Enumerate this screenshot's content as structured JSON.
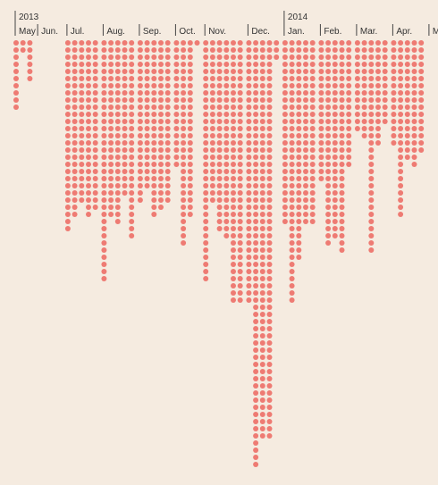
{
  "colors": {
    "background": "#f5ebe0",
    "dot": "#ee7b73",
    "text": "#333333",
    "tick": "#444444"
  },
  "chart_data": {
    "type": "dot-column",
    "years": [
      {
        "label": "2013",
        "month_index": 0
      },
      {
        "label": "2014",
        "month_index": 8
      }
    ],
    "months": [
      {
        "label": "May",
        "columns": [
          10,
          2,
          6
        ]
      },
      {
        "label": "Jun.",
        "columns": []
      },
      {
        "label": "Jul.",
        "columns": [
          27,
          25,
          23,
          25,
          24
        ]
      },
      {
        "label": "Aug.",
        "columns": [
          34,
          25,
          26,
          22,
          28
        ]
      },
      {
        "label": "Sep.",
        "columns": [
          23,
          21,
          25,
          24,
          23
        ]
      },
      {
        "label": "Oct.",
        "columns": [
          18,
          29,
          25,
          1
        ]
      },
      {
        "label": "Nov.",
        "columns": [
          34,
          23,
          27,
          28,
          37,
          37
        ]
      },
      {
        "label": "Dec.",
        "columns": [
          37,
          60,
          56,
          56,
          3
        ]
      },
      {
        "label": "Jan.",
        "columns": [
          26,
          37,
          31,
          26,
          26
        ]
      },
      {
        "label": "Feb.",
        "columns": [
          20,
          29,
          28,
          30,
          18
        ]
      },
      {
        "label": "Mar.",
        "columns": [
          13,
          14,
          30,
          15,
          12
        ]
      },
      {
        "label": "Apr.",
        "columns": [
          15,
          25,
          17,
          18,
          16
        ]
      },
      {
        "label": "May",
        "columns": []
      }
    ]
  }
}
